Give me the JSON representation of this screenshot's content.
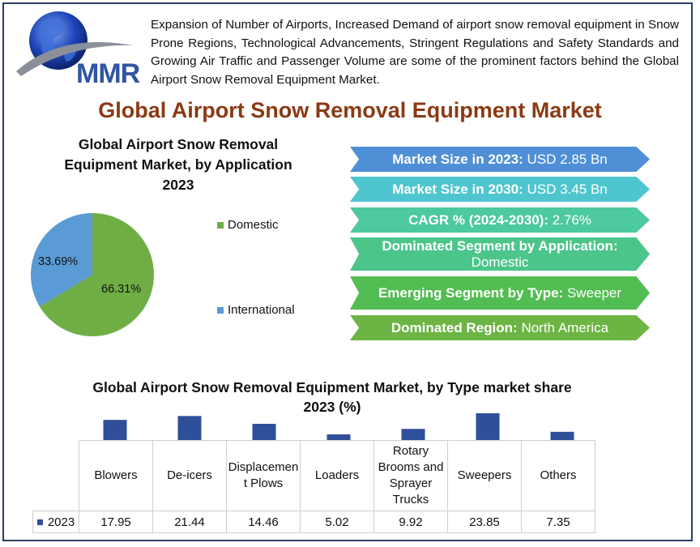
{
  "brand": {
    "logo_text": "MMR"
  },
  "intro_text": "Expansion of Number of Airports, Increased Demand of airport snow removal equipment in Snow Prone Regions, Technological Advancements, Stringent Regulations and Safety Standards and Growing Air Traffic and Passenger Volume are some of the prominent factors behind the Global Airport Snow Removal Equipment Market.",
  "main_title": "Global Airport Snow Removal Equipment Market",
  "stats": [
    {
      "label": "Market Size in 2023:",
      "value": "USD 2.85 Bn",
      "color": "#4f8fd6"
    },
    {
      "label": "Market Size in 2030:",
      "value": "USD 3.45 Bn",
      "color": "#4fc6cf"
    },
    {
      "label": "CAGR % (2024-2030):",
      "value": "2.76%",
      "color": "#4cc99e"
    },
    {
      "label": "Dominated Segment by Application:",
      "value": "Domestic",
      "color": "#4cc58a"
    },
    {
      "label": "Emerging Segment by Type:",
      "value": "Sweeper",
      "color": "#52bd52"
    },
    {
      "label": "Dominated Region:",
      "value": "North America",
      "color": "#6cb443"
    }
  ],
  "chart_data": [
    {
      "type": "pie",
      "title_lines": [
        "Global Airport Snow Removal",
        "Equipment Market, by Application",
        "2023"
      ],
      "slices": [
        {
          "name": "Domestic",
          "value": 66.31,
          "label": "66.31%",
          "color": "#6fae45"
        },
        {
          "name": "International",
          "value": 33.69,
          "label": "33.69%",
          "color": "#5b9bd5"
        }
      ]
    },
    {
      "type": "bar",
      "title_lines": [
        "Global Airport Snow Removal Equipment Market, by Type market share",
        "2023 (%)"
      ],
      "series_name": "2023",
      "series_color": "#2f4f9a",
      "categories": [
        "Blowers",
        "De-icers",
        "Displacement Plows",
        "Loaders",
        "Rotary Brooms and Sprayer Trucks",
        "Sweepers",
        "Others"
      ],
      "category_lines": [
        [
          "Blowers"
        ],
        [
          "De-icers"
        ],
        [
          "Displacemen",
          "t Plows"
        ],
        [
          "Loaders"
        ],
        [
          "Rotary",
          "Brooms and",
          "Sprayer",
          "Trucks"
        ],
        [
          "Sweepers"
        ],
        [
          "Others"
        ]
      ],
      "values": [
        17.95,
        21.44,
        14.46,
        5.02,
        9.92,
        23.85,
        7.35
      ],
      "value_labels": [
        "17.95",
        "21.44",
        "14.46",
        "5.02",
        "9.92",
        "23.85",
        "7.35"
      ]
    }
  ]
}
